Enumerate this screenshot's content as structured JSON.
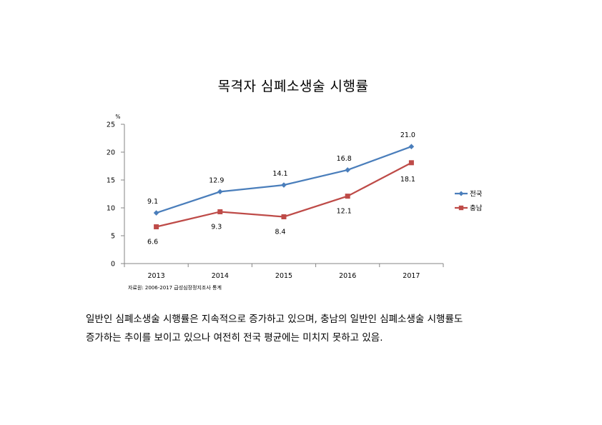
{
  "chart_data": {
    "type": "line",
    "title": "목격자 심폐소생술 시행률",
    "ylabel": "%",
    "xlabel": "",
    "categories": [
      "2013",
      "2014",
      "2015",
      "2016",
      "2017"
    ],
    "ylim": [
      0,
      25
    ],
    "yticks": [
      0,
      5,
      10,
      15,
      20,
      25
    ],
    "series": [
      {
        "name": "전국",
        "values": [
          9.1,
          12.9,
          14.1,
          16.8,
          21.0
        ],
        "labels": [
          "9.1",
          "12.9",
          "14.1",
          "16.8",
          "21.0"
        ],
        "color": "#4a7ebb",
        "marker": "diamond"
      },
      {
        "name": "충남",
        "values": [
          6.6,
          9.3,
          8.4,
          12.1,
          18.1
        ],
        "labels": [
          "6.6",
          "9.3",
          "8.4",
          "12.1",
          "18.1"
        ],
        "color": "#be4b48",
        "marker": "square"
      }
    ],
    "source": "자료원: 2006-2017 급성심장정지조사 통계",
    "legend_position": "right",
    "grid": false
  },
  "notes": [
    "일반인 심폐소생술 시행률은 지속적으로 증가하고 있으며, 충남의 일반인 심폐소생술 시행률도",
    "증가하는 추이를 보이고 있으나 여전히 전국 평균에는 미치지 못하고 있음."
  ]
}
